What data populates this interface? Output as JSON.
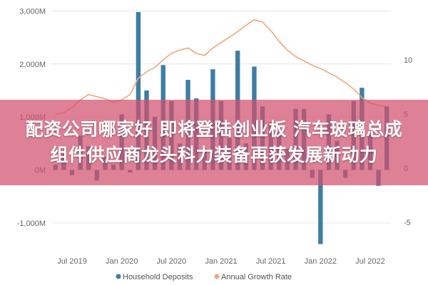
{
  "chart_data": {
    "type": "bar",
    "title": "",
    "colors": {
      "bar": "#3e7ea3",
      "line": "#f2a777",
      "grid": "#e6e6e6"
    },
    "x": [
      "2019-05",
      "2019-06",
      "2019-07",
      "2019-08",
      "2019-09",
      "2019-10",
      "2019-11",
      "2019-12",
      "2020-01",
      "2020-02",
      "2020-03",
      "2020-04",
      "2020-05",
      "2020-06",
      "2020-07",
      "2020-08",
      "2020-09",
      "2020-10",
      "2020-11",
      "2020-12",
      "2021-01",
      "2021-02",
      "2021-03",
      "2021-04",
      "2021-05",
      "2021-06",
      "2021-07",
      "2021-08",
      "2021-09",
      "2021-10",
      "2021-11",
      "2021-12",
      "2022-01",
      "2022-02",
      "2022-03",
      "2022-04",
      "2022-05",
      "2022-06",
      "2022-07",
      "2022-08",
      "2022-09"
    ],
    "x_tick_labels": [
      {
        "label": "Jul 2019",
        "x": "2019-07"
      },
      {
        "label": "Jan 2020",
        "x": "2020-01"
      },
      {
        "label": "Jul 2020",
        "x": "2020-07"
      },
      {
        "label": "Jan 2021",
        "x": "2021-01"
      },
      {
        "label": "Jul 2021",
        "x": "2021-07"
      },
      {
        "label": "Jan 2022",
        "x": "2022-01"
      },
      {
        "label": "Jul 2022",
        "x": "2022-07"
      }
    ],
    "series": [
      {
        "name": "Household Deposits",
        "type": "bar",
        "axis": "left",
        "values": [
          100,
          300,
          -100,
          650,
          450,
          -200,
          250,
          100,
          1050,
          -50,
          2980,
          1500,
          1000,
          1980,
          1300,
          500,
          1700,
          1350,
          400,
          1900,
          1300,
          600,
          2250,
          500,
          1950,
          1200,
          900,
          700,
          400,
          1150,
          1150,
          -150,
          -1400,
          1050,
          550,
          -150,
          1300,
          1550,
          700,
          -300,
          1200
        ]
      },
      {
        "name": "Annual Growth Rate",
        "type": "line",
        "axis": "right",
        "values": [
          5.0,
          5.1,
          5.6,
          6.3,
          6.8,
          6.6,
          6.4,
          6.1,
          6.3,
          6.8,
          8.3,
          8.9,
          9.3,
          10.0,
          10.6,
          10.9,
          11.1,
          10.6,
          10.4,
          11.1,
          11.6,
          12.1,
          12.6,
          13.2,
          13.7,
          13.5,
          12.7,
          11.7,
          10.9,
          10.3,
          9.9,
          9.5,
          9.2,
          8.8,
          8.4,
          7.9,
          7.3,
          6.5,
          6.0,
          5.8,
          5.7
        ]
      }
    ],
    "y_left": {
      "ticks": [
        "3,000M",
        "2,000M",
        "1,000M",
        "0M",
        "-1,000M"
      ],
      "tick_values": [
        3000,
        2000,
        1000,
        0,
        -1000
      ],
      "ylim": [
        -1500,
        3100
      ]
    },
    "y_right": {
      "ticks": [
        "10",
        "5",
        "0",
        "-5"
      ],
      "tick_values": [
        10,
        5,
        0,
        -5
      ],
      "ylim": [
        -7.5,
        15.0
      ]
    },
    "legend": {
      "position": "bottom",
      "items": [
        "Household Deposits",
        "Annual Growth Rate"
      ]
    }
  },
  "overlay": {
    "line1": "配资公司哪家好 即将登陆创业板 汽车玻璃总成",
    "line2": "组件供应商龙头科力装备再获发展新动力"
  }
}
